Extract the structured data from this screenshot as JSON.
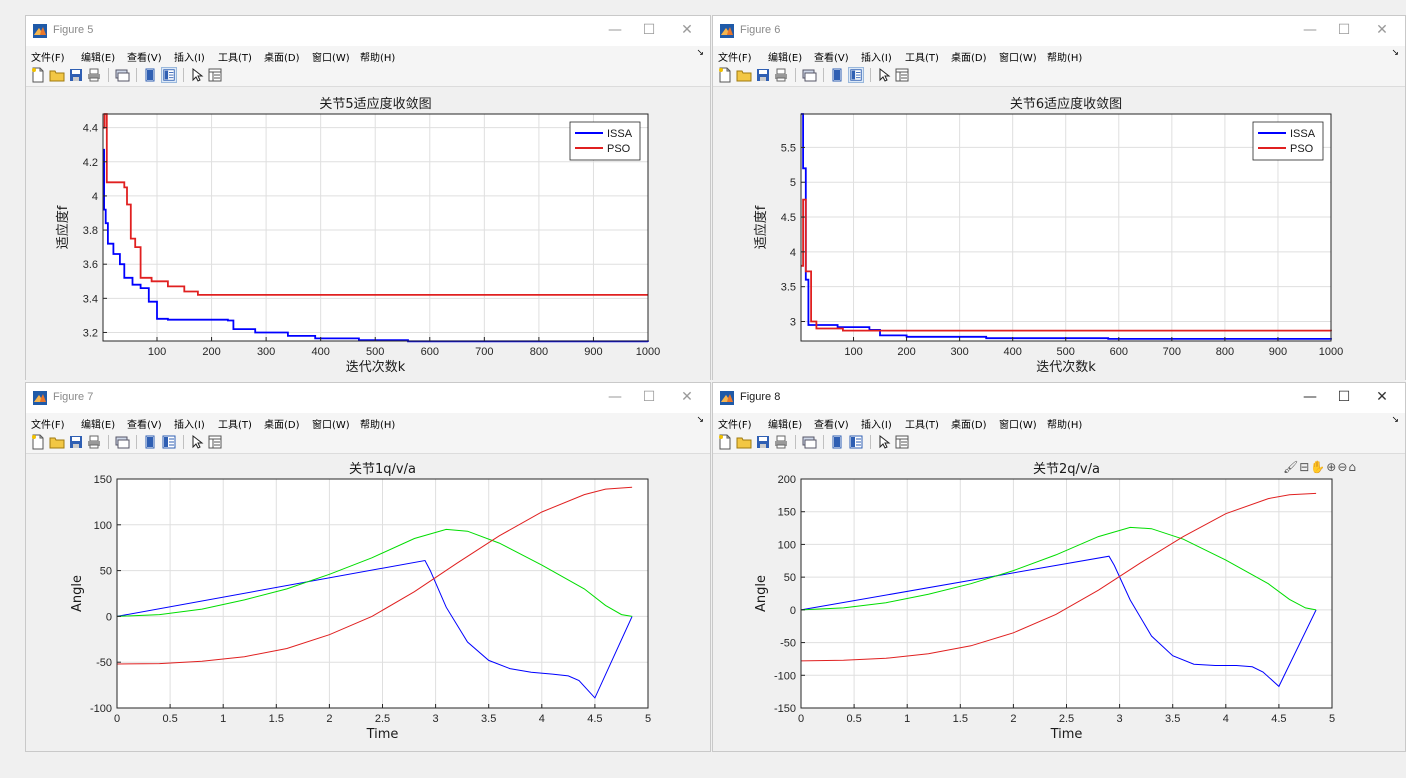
{
  "menu_labels": [
    "文件(F)",
    "编辑(E)",
    "查看(V)",
    "插入(I)",
    "工具(T)",
    "桌面(D)",
    "窗口(W)",
    "帮助(H)"
  ],
  "menu_overflow": "↘",
  "window_controls": {
    "minimize": "—",
    "maximize": "☐",
    "close": "✕"
  },
  "axes_toolbar": "🖌⊟✋⊕⊖⌂",
  "colors": {
    "issa": "#0000ff",
    "pso": "#e02020",
    "pos": "#0000ff",
    "vel": "#00dd00",
    "acc": "#e02020",
    "grid": "#dfdfdf"
  },
  "windows": [
    {
      "id": "w5",
      "title": "Figure 5",
      "active": false,
      "chart_index": 0
    },
    {
      "id": "w6",
      "title": "Figure 6",
      "active": false,
      "chart_index": 1
    },
    {
      "id": "w7",
      "title": "Figure 7",
      "active": false,
      "chart_index": 2
    },
    {
      "id": "w8",
      "title": "Figure 8",
      "active": true,
      "chart_index": 3
    }
  ],
  "chart_data": [
    {
      "type": "line",
      "title": "关节5适应度收敛图",
      "xlabel": "迭代次数k",
      "ylabel": "适应度f",
      "xlim": [
        1,
        1000
      ],
      "ylim": [
        3.15,
        4.48
      ],
      "xticks": [
        100,
        200,
        300,
        400,
        500,
        600,
        700,
        800,
        900,
        1000
      ],
      "yticks": [
        3.2,
        3.4,
        3.6,
        3.8,
        4,
        4.2,
        4.4
      ],
      "grid": true,
      "legend": "top-right",
      "series": [
        {
          "name": "ISSA",
          "color": "#0000ff",
          "step": true,
          "x": [
            1,
            3,
            6,
            10,
            20,
            32,
            40,
            55,
            70,
            85,
            100,
            120,
            230,
            240,
            280,
            340,
            390,
            470,
            560,
            1000
          ],
          "y": [
            4.27,
            3.92,
            3.84,
            3.72,
            3.66,
            3.6,
            3.52,
            3.48,
            3.46,
            3.38,
            3.28,
            3.275,
            3.27,
            3.22,
            3.2,
            3.18,
            3.165,
            3.155,
            3.148,
            3.145
          ]
        },
        {
          "name": "PSO",
          "color": "#e02020",
          "step": true,
          "x": [
            1,
            4,
            8,
            40,
            45,
            52,
            60,
            70,
            90,
            120,
            150,
            175,
            1000
          ],
          "y": [
            4.4,
            4.48,
            4.08,
            4.05,
            3.95,
            3.75,
            3.7,
            3.52,
            3.5,
            3.47,
            3.44,
            3.42,
            3.42
          ]
        }
      ]
    },
    {
      "type": "line",
      "title": "关节6适应度收敛图",
      "xlabel": "迭代次数k",
      "ylabel": "适应度f",
      "xlim": [
        1,
        1000
      ],
      "ylim": [
        2.72,
        5.98
      ],
      "xticks": [
        100,
        200,
        300,
        400,
        500,
        600,
        700,
        800,
        900,
        1000
      ],
      "yticks": [
        3,
        3.5,
        4,
        4.5,
        5,
        5.5
      ],
      "grid": true,
      "legend": "top-right",
      "series": [
        {
          "name": "ISSA",
          "color": "#0000ff",
          "step": true,
          "x": [
            1,
            5,
            10,
            15,
            70,
            130,
            150,
            200,
            350,
            580,
            1000
          ],
          "y": [
            5.98,
            5.2,
            3.6,
            2.95,
            2.92,
            2.88,
            2.8,
            2.78,
            2.76,
            2.75,
            2.74
          ]
        },
        {
          "name": "PSO",
          "color": "#e02020",
          "step": true,
          "x": [
            1,
            5,
            10,
            20,
            30,
            80,
            1000
          ],
          "y": [
            3.8,
            4.75,
            3.72,
            3.0,
            2.9,
            2.87,
            2.86
          ]
        }
      ]
    },
    {
      "type": "line",
      "title": "关节1q/v/a",
      "xlabel": "Time",
      "ylabel": "Angle",
      "xlim": [
        0,
        5
      ],
      "ylim": [
        -100,
        150
      ],
      "xticks": [
        0,
        0.5,
        1,
        1.5,
        2,
        2.5,
        3,
        3.5,
        4,
        4.5,
        5
      ],
      "yticks": [
        -100,
        -50,
        0,
        50,
        100,
        150
      ],
      "grid": true,
      "legend": "none",
      "series": [
        {
          "color": "#0000ff",
          "step": false,
          "x": [
            0,
            2.9,
            2.95,
            3.1,
            3.3,
            3.5,
            3.7,
            3.9,
            4.1,
            4.25,
            4.35,
            4.5,
            4.85
          ],
          "y": [
            0,
            61,
            50,
            10,
            -28,
            -48,
            -57,
            -61,
            -63,
            -65,
            -70,
            -89,
            0
          ]
        },
        {
          "color": "#00dd00",
          "step": false,
          "x": [
            0,
            0.4,
            0.8,
            1.2,
            1.6,
            2.0,
            2.4,
            2.8,
            3.1,
            3.3,
            3.6,
            4.0,
            4.4,
            4.6,
            4.75,
            4.85
          ],
          "y": [
            0,
            2,
            8,
            18,
            30,
            46,
            64,
            85,
            95,
            93,
            80,
            56,
            30,
            12,
            2,
            0
          ]
        },
        {
          "color": "#e02020",
          "step": false,
          "x": [
            0,
            0.4,
            0.8,
            1.2,
            1.6,
            2.0,
            2.4,
            2.8,
            3.2,
            3.6,
            4.0,
            4.4,
            4.6,
            4.85
          ],
          "y": [
            -52,
            -51.5,
            -49,
            -44,
            -35,
            -20,
            0,
            27,
            58,
            88,
            114,
            133,
            139,
            141
          ]
        }
      ]
    },
    {
      "type": "line",
      "title": "关节2q/v/a",
      "xlabel": "Time",
      "ylabel": "Angle",
      "xlim": [
        0,
        5
      ],
      "ylim": [
        -150,
        200
      ],
      "xticks": [
        0,
        0.5,
        1,
        1.5,
        2,
        2.5,
        3,
        3.5,
        4,
        4.5,
        5
      ],
      "yticks": [
        -150,
        -100,
        -50,
        0,
        50,
        100,
        150,
        200
      ],
      "grid": true,
      "legend": "none",
      "series": [
        {
          "color": "#0000ff",
          "step": false,
          "x": [
            0,
            2.9,
            2.95,
            3.1,
            3.3,
            3.5,
            3.7,
            3.9,
            4.1,
            4.25,
            4.35,
            4.5,
            4.85
          ],
          "y": [
            0,
            82,
            68,
            15,
            -40,
            -70,
            -83,
            -85,
            -85,
            -87,
            -95,
            -117,
            0
          ]
        },
        {
          "color": "#00dd00",
          "step": false,
          "x": [
            0,
            0.4,
            0.8,
            1.2,
            1.6,
            2.0,
            2.4,
            2.8,
            3.1,
            3.3,
            3.6,
            4.0,
            4.4,
            4.6,
            4.75,
            4.85
          ],
          "y": [
            0,
            3,
            11,
            24,
            40,
            60,
            84,
            112,
            126,
            124,
            108,
            76,
            40,
            16,
            3,
            0
          ]
        },
        {
          "color": "#e02020",
          "step": false,
          "x": [
            0,
            0.4,
            0.8,
            1.2,
            1.6,
            2.0,
            2.4,
            2.8,
            3.2,
            3.6,
            4.0,
            4.4,
            4.6,
            4.85
          ],
          "y": [
            -78,
            -77,
            -74,
            -67,
            -55,
            -35,
            -7,
            30,
            72,
            112,
            147,
            170,
            176,
            178
          ]
        }
      ]
    }
  ]
}
